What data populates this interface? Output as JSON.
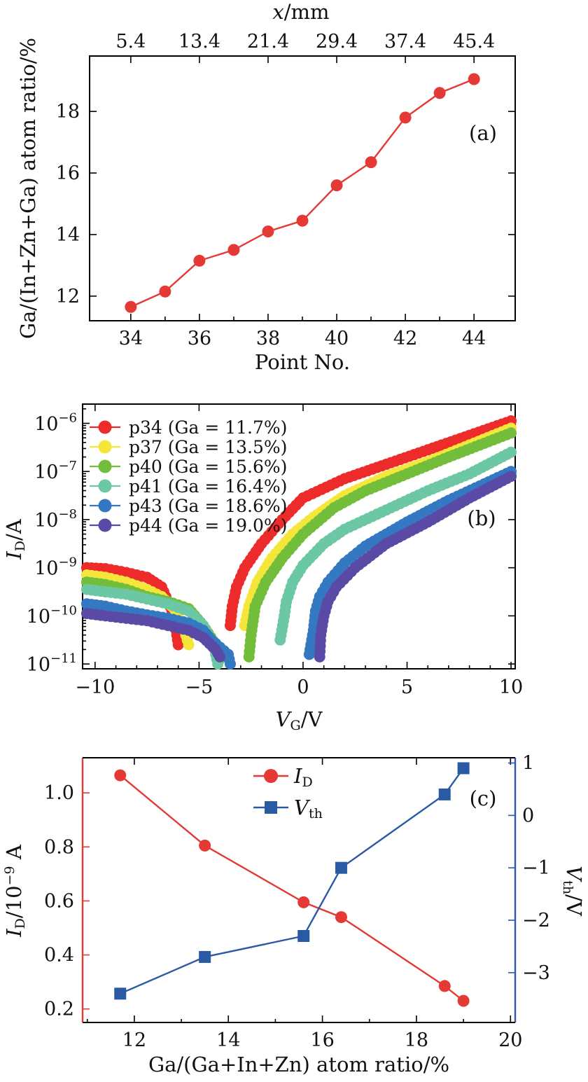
{
  "colors": {
    "red": "#e53935",
    "blue": "#2b5aa5",
    "p34": "#ee2b2b",
    "p37": "#f4e63a",
    "p40": "#72bd3a",
    "p41": "#6cc8a4",
    "p43": "#3478c2",
    "p44": "#5a4aa6"
  },
  "chart_data": [
    {
      "id": "a",
      "type": "line",
      "panel_label": "(a)",
      "top_xlabel": "x/mm",
      "top_ticks": [
        "5.4",
        "13.4",
        "21.4",
        "29.4",
        "37.4",
        "45.4"
      ],
      "xlabel": "Point No.",
      "ylabel": "Ga/(In+Zn+Ga) atom ratio/%",
      "x_ticks": [
        "34",
        "36",
        "38",
        "40",
        "42",
        "44"
      ],
      "y_ticks": [
        "12",
        "14",
        "16",
        "18"
      ],
      "xlim": [
        32.8,
        45.2
      ],
      "ylim": [
        11.2,
        19.8
      ],
      "x": [
        34,
        35,
        36,
        37,
        38,
        39,
        40,
        41,
        42,
        43,
        44
      ],
      "y": [
        11.65,
        12.15,
        13.15,
        13.5,
        14.1,
        14.45,
        15.6,
        16.35,
        17.8,
        18.6,
        19.05
      ]
    },
    {
      "id": "b",
      "type": "scatter",
      "panel_label": "(b)",
      "xlabel": "V_G/V",
      "ylabel": "I_D/A",
      "y_scale": "log",
      "x_ticks": [
        "−10",
        "−5",
        "0",
        "5",
        "10"
      ],
      "y_ticks": [
        "10^-11",
        "10^-10",
        "10^-9",
        "10^-8",
        "10^-7",
        "10^-6"
      ],
      "xlim": [
        -10.6,
        10.2
      ],
      "ylim_log10": [
        -11.1,
        -5.6
      ],
      "legend": "top-left",
      "series": [
        {
          "name": "p34 (Ga = 11.7%)",
          "color_key": "p34",
          "left": [
            [
              -10.4,
              -9.0
            ],
            [
              -9.5,
              -9.02
            ],
            [
              -8.5,
              -9.1
            ],
            [
              -7.5,
              -9.2
            ],
            [
              -6.8,
              -9.4
            ],
            [
              -6.2,
              -10.0
            ],
            [
              -6.0,
              -10.6
            ]
          ],
          "right": [
            [
              -3.5,
              -10.2
            ],
            [
              -3.4,
              -9.8
            ],
            [
              -3.2,
              -9.4
            ],
            [
              -2.8,
              -9.0
            ],
            [
              -2.0,
              -8.5
            ],
            [
              -1.0,
              -8.0
            ],
            [
              0,
              -7.55
            ],
            [
              2,
              -7.15
            ],
            [
              4,
              -6.85
            ],
            [
              6,
              -6.55
            ],
            [
              8,
              -6.25
            ],
            [
              10,
              -5.95
            ]
          ]
        },
        {
          "name": "p37 (Ga = 13.5%)",
          "color_key": "p37",
          "left": [
            [
              -10.4,
              -9.15
            ],
            [
              -9.5,
              -9.2
            ],
            [
              -8.5,
              -9.3
            ],
            [
              -7.5,
              -9.45
            ],
            [
              -6.8,
              -9.6
            ],
            [
              -6.2,
              -9.85
            ],
            [
              -5.7,
              -10.3
            ],
            [
              -5.5,
              -10.6
            ]
          ],
          "right": [
            [
              -2.8,
              -10.2
            ],
            [
              -2.6,
              -9.8
            ],
            [
              -2.2,
              -9.3
            ],
            [
              -1.5,
              -8.8
            ],
            [
              -0.5,
              -8.3
            ],
            [
              0.5,
              -7.95
            ],
            [
              2,
              -7.5
            ],
            [
              4,
              -7.1
            ],
            [
              6,
              -6.8
            ],
            [
              8,
              -6.45
            ],
            [
              10,
              -6.1
            ]
          ]
        },
        {
          "name": "p40 (Ga = 15.6%)",
          "color_key": "p40",
          "left": [
            [
              -10.4,
              -9.3
            ],
            [
              -9.5,
              -9.35
            ],
            [
              -8.5,
              -9.45
            ],
            [
              -7.5,
              -9.6
            ],
            [
              -6.5,
              -9.7
            ],
            [
              -5.5,
              -9.85
            ],
            [
              -4.8,
              -10.2
            ],
            [
              -4.2,
              -10.6
            ],
            [
              -4.0,
              -10.9
            ]
          ],
          "right": [
            [
              -2.6,
              -10.85
            ],
            [
              -2.5,
              -10.4
            ],
            [
              -2.3,
              -9.8
            ],
            [
              -1.8,
              -9.3
            ],
            [
              -1.0,
              -8.8
            ],
            [
              0,
              -8.3
            ],
            [
              1.5,
              -7.75
            ],
            [
              3,
              -7.4
            ],
            [
              5,
              -7.05
            ],
            [
              7,
              -6.7
            ],
            [
              10,
              -6.2
            ]
          ]
        },
        {
          "name": "p41 (Ga = 16.4%)",
          "color_key": "p41",
          "left": [
            [
              -10.4,
              -9.45
            ],
            [
              -9.5,
              -9.5
            ],
            [
              -8.5,
              -9.55
            ],
            [
              -7.5,
              -9.65
            ],
            [
              -6.5,
              -9.75
            ],
            [
              -5.5,
              -9.9
            ],
            [
              -4.8,
              -10.2
            ],
            [
              -4.3,
              -10.6
            ],
            [
              -4.1,
              -11.0
            ]
          ],
          "right": [
            [
              -1.1,
              -10.5
            ],
            [
              -0.9,
              -10.0
            ],
            [
              -0.8,
              -9.7
            ],
            [
              -0.5,
              -9.3
            ],
            [
              0,
              -8.95
            ],
            [
              1,
              -8.5
            ],
            [
              2,
              -8.2
            ],
            [
              4,
              -7.8
            ],
            [
              6,
              -7.4
            ],
            [
              8,
              -7.05
            ],
            [
              10,
              -6.6
            ]
          ]
        },
        {
          "name": "p43 (Ga = 18.6%)",
          "color_key": "p43",
          "left": [
            [
              -10.4,
              -9.75
            ],
            [
              -9.5,
              -9.8
            ],
            [
              -8.5,
              -9.9
            ],
            [
              -7.5,
              -9.98
            ],
            [
              -6.5,
              -10.05
            ],
            [
              -5.5,
              -10.15
            ],
            [
              -4.8,
              -10.3
            ],
            [
              -4.4,
              -10.5
            ],
            [
              -4.0,
              -10.65
            ],
            [
              -3.6,
              -10.8
            ],
            [
              -3.5,
              -11.0
            ]
          ],
          "right": [
            [
              0.3,
              -10.8
            ],
            [
              0.5,
              -10.3
            ],
            [
              0.6,
              -9.9
            ],
            [
              0.8,
              -9.6
            ],
            [
              1.2,
              -9.3
            ],
            [
              2,
              -8.9
            ],
            [
              3,
              -8.55
            ],
            [
              5,
              -8.05
            ],
            [
              7,
              -7.6
            ],
            [
              10,
              -7.0
            ]
          ]
        },
        {
          "name": "p44 (Ga = 19.0%)",
          "color_key": "p44",
          "left": [
            [
              -10.4,
              -9.95
            ],
            [
              -9.5,
              -10.0
            ],
            [
              -8.5,
              -10.05
            ],
            [
              -7.5,
              -10.1
            ],
            [
              -6.5,
              -10.2
            ],
            [
              -5.5,
              -10.3
            ],
            [
              -4.8,
              -10.45
            ],
            [
              -4.2,
              -10.7
            ],
            [
              -4.0,
              -10.85
            ]
          ],
          "right": [
            [
              0.8,
              -10.85
            ],
            [
              0.85,
              -10.4
            ],
            [
              1.0,
              -10.0
            ],
            [
              1.2,
              -9.7
            ],
            [
              1.6,
              -9.4
            ],
            [
              2.5,
              -9.0
            ],
            [
              4,
              -8.5
            ],
            [
              6,
              -8.05
            ],
            [
              8,
              -7.55
            ],
            [
              10,
              -7.1
            ]
          ]
        }
      ]
    },
    {
      "id": "c",
      "type": "line",
      "panel_label": "(c)",
      "xlabel": "Ga/(Ga+In+Zn) atom ratio/%",
      "ylabel_left": "I_D/10^-9 A",
      "ylabel_right": "V_th/V",
      "x_ticks": [
        "12",
        "14",
        "16",
        "18",
        "20"
      ],
      "y_left_ticks": [
        "0.2",
        "0.4",
        "0.6",
        "0.8",
        "1.0"
      ],
      "y_right_ticks": [
        "−3",
        "−2",
        "−1",
        "0",
        "1"
      ],
      "xlim": [
        10.9,
        20.1
      ],
      "ylim_left": [
        0.15,
        1.13
      ],
      "ylim_right": [
        -3.95,
        1.1
      ],
      "legend": "top-center",
      "x": [
        11.7,
        13.5,
        15.6,
        16.4,
        18.6,
        19.0
      ],
      "series": [
        {
          "name": "I_D",
          "axis": "left",
          "marker": "circle",
          "color_key": "red",
          "values": [
            1.065,
            0.805,
            0.595,
            0.54,
            0.285,
            0.23
          ]
        },
        {
          "name": "V_th",
          "axis": "right",
          "marker": "square",
          "color_key": "blue",
          "values": [
            -3.4,
            -2.7,
            -2.3,
            -1.0,
            0.4,
            0.9
          ]
        }
      ]
    }
  ]
}
